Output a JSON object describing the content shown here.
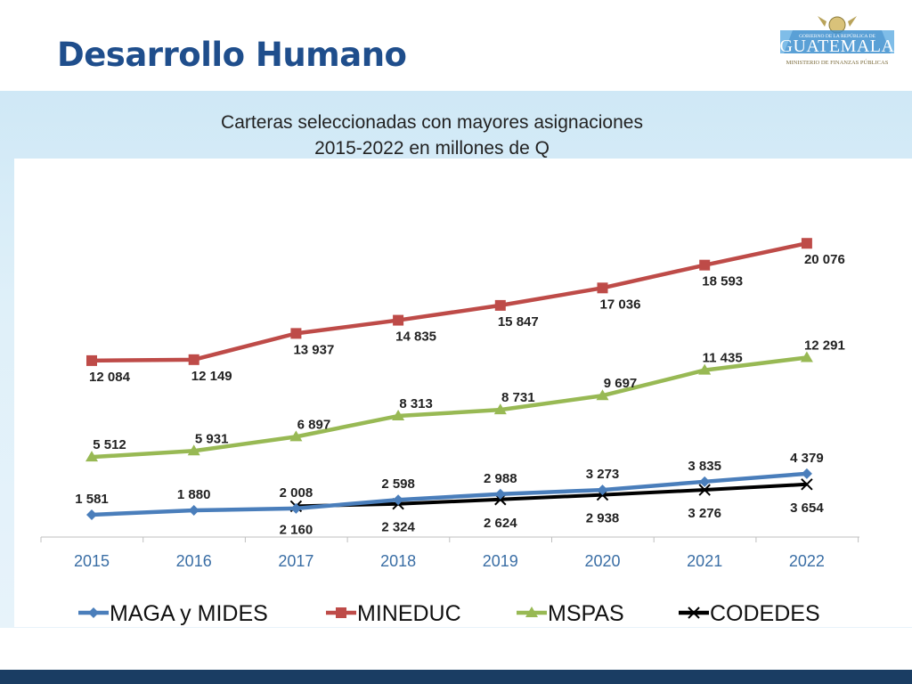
{
  "slide_title": "Desarrollo Humano",
  "logo": {
    "line1": "GOBIERNO DE LA REPÚBLICA DE",
    "line2": "GUATEMALA",
    "line3": "MINISTERIO DE FINANZAS PÚBLICAS",
    "icon": "coat-of-arms-icon"
  },
  "colors": {
    "title": "#1f4e8c",
    "MAGA y MIDES": "#4a7ebb",
    "MINEDUC": "#be4b48",
    "MSPAS": "#98b954",
    "CODEDES": "#000000",
    "axis_labels": "#3a6ea5",
    "footer": "#1a3d63"
  },
  "chart_data": {
    "type": "line",
    "title": "Carteras seleccionadas con mayores asignaciones",
    "subtitle": "2015-2022 en millones de Q",
    "categories": [
      "2015",
      "2016",
      "2017",
      "2018",
      "2019",
      "2020",
      "2021",
      "2022"
    ],
    "ylim": [
      0,
      21000
    ],
    "grid": false,
    "legend_position": "bottom",
    "series": [
      {
        "name": "MAGA y MIDES",
        "marker": "diamond",
        "values": [
          1581,
          1880,
          2008,
          2598,
          2988,
          3273,
          3835,
          4379
        ],
        "labels": [
          "1 581",
          "1 880",
          "2 008",
          "2 598",
          "2 988",
          "3 273",
          "3 835",
          "4 379"
        ]
      },
      {
        "name": "MINEDUC",
        "marker": "square",
        "values": [
          12084,
          12149,
          13937,
          14835,
          15847,
          17036,
          18593,
          20076
        ],
        "labels": [
          "12 084",
          "12 149",
          "13 937",
          "14 835",
          "15 847",
          "17 036",
          "18 593",
          "20 076"
        ]
      },
      {
        "name": "MSPAS",
        "marker": "triangle",
        "values": [
          5512,
          5931,
          6897,
          8313,
          8731,
          9697,
          11435,
          12291
        ],
        "labels": [
          "5 512",
          "5 931",
          "6 897",
          "8 313",
          "8 731",
          "9 697",
          "11 435",
          "12 291"
        ]
      },
      {
        "name": "CODEDES",
        "marker": "x",
        "values": [
          null,
          null,
          2160,
          2324,
          2624,
          2938,
          3276,
          3654
        ],
        "labels": [
          "",
          "",
          "2 160",
          "2 324",
          "2 624",
          "2 938",
          "3 276",
          "3 654"
        ]
      }
    ]
  }
}
